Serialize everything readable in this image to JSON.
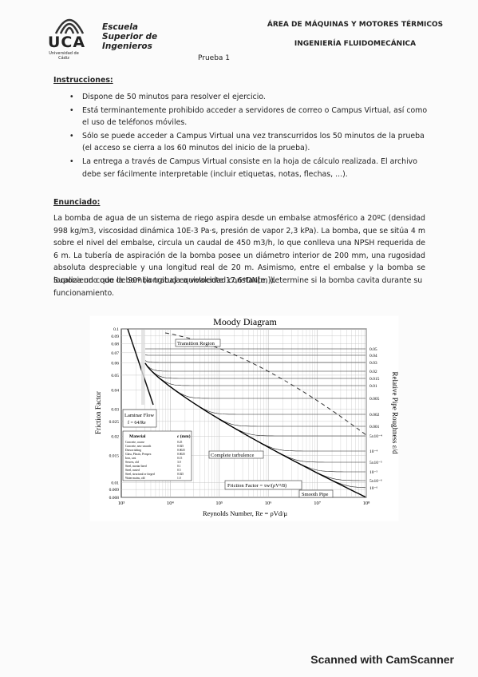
{
  "header": {
    "logo": "UCA",
    "logo_sub": "Universidad de Cádiz",
    "school": "Escuela Superior de Ingenieros",
    "area": "ÁREA DE MÁQUINAS Y MOTORES TÉRMICOS",
    "dept": "INGENIERÍA FLUIDOMECÁNICA",
    "test": "Prueba 1"
  },
  "instructions": {
    "heading": "Instrucciones:",
    "items": [
      "Dispone de 50 minutos para resolver el ejercicio.",
      "Está terminantemente prohibido acceder a servidores de correo o Campus Virtual, así como el uso de teléfonos móviles.",
      "Sólo se puede acceder a Campus Virtual una vez transcurridos los 50 minutos de la prueba (el acceso se cierra a los 60 minutos del inicio de la prueba).",
      "La entrega a través de Campus Virtual consiste en la hoja de cálculo realizada. El archivo debe ser fácilmente interpretable (incluir etiquetas, notas, flechas, ...)."
    ]
  },
  "statement": {
    "heading": "Enunciado:",
    "paragraphs": [
      "La bomba de agua de un sistema de riego aspira desde un embalse atmosférico a 20ºC (densidad 998 kg/m3, viscosidad dinámica 10E-3 Pa·s, presión de vapor 2,3 kPa). La bomba, que se sitúa 4 m sobre el nivel del embalse, circula un caudal de 450 m3/h, lo que conlleva una NPSH requerida de 6 m. La tubería de aspiración de la bomba posee un diámetro interior de 200 mm, una rugosidad absoluta despreciable y una longitud real de 20 m. Asimismo, entre el embalse y la bomba se localiza un codo de 90º (longitud equivalente 17,6*DN[m]).",
      "Suponiendo que la bomba trabaja a velocidad constante, determine si la bomba cavita durante su funcionamiento."
    ]
  },
  "figure": {
    "title": "Moody Diagram",
    "y_label": "Friction Factor",
    "y2_label": "Relative Pipe Roughness ε/d",
    "x_label": "Reynolds Number, Re = ρVd/μ",
    "left_ticks": [
      "0.1",
      "0.09",
      "0.08",
      "0.07",
      "0.06",
      "0.05",
      "0.04",
      "0.03",
      "0.025",
      "0.02",
      "0.015",
      "0.01",
      "0.009",
      "0.008"
    ],
    "right_ticks": [
      "0.05",
      "0.04",
      "0.03",
      "0.02",
      "0.015",
      "0.01",
      "0.005",
      "0.002",
      "0.001",
      "5x10⁻⁴",
      "10⁻⁴",
      "5x10⁻⁵",
      "10⁻⁵",
      "5x10⁻⁶",
      "10⁻⁶"
    ],
    "x_ticks": [
      "10³",
      "10⁴",
      "10⁵",
      "10⁶",
      "10⁷",
      "10⁸"
    ],
    "annotations": {
      "transition": "Transition Region",
      "laminar": "Laminar Flow",
      "laminar_eq": "f = 64/Re",
      "complete": "Complete turbulence",
      "friction": "Friction Factor = τw/(ρV²/8)",
      "smooth": "Smooth Pipe"
    },
    "material_table": {
      "headers": [
        "Material",
        "ε (mm)"
      ],
      "rows": [
        [
          "Concrete, coarse",
          "0.25"
        ],
        [
          "Concrete, new smooth",
          "0.025"
        ],
        [
          "Drawn tubing",
          "0.0025"
        ],
        [
          "Glass, Plastic, Perspex",
          "0.0025"
        ],
        [
          "Iron, cast",
          "0.15"
        ],
        [
          "Sewers, old",
          "3.0"
        ],
        [
          "Steel, mortar lined",
          "0.1"
        ],
        [
          "Steel, rusted",
          "0.5"
        ],
        [
          "Steel, structural or forged",
          "0.025"
        ],
        [
          "Water mains, old",
          "1.0"
        ]
      ]
    }
  },
  "footer": "Scanned with CamScanner"
}
